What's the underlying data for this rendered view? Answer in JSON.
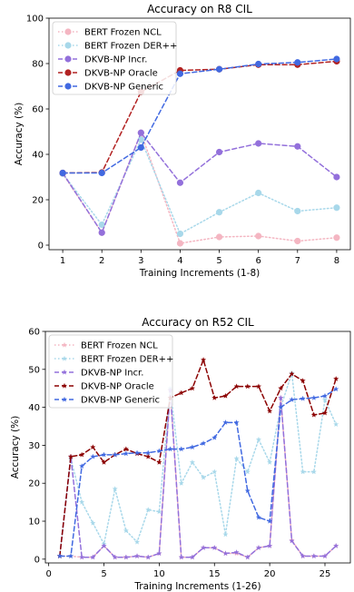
{
  "chart_data": [
    {
      "type": "line",
      "title": "Accuracy on R8 CIL",
      "xlabel": "Training Increments (1-8)",
      "ylabel": "Accuracy (%)",
      "xlim": [
        0.65,
        8.35
      ],
      "ylim": [
        -2,
        100
      ],
      "xticks": [
        1,
        2,
        3,
        4,
        5,
        6,
        7,
        8
      ],
      "yticks": [
        0,
        20,
        40,
        60,
        80,
        100
      ],
      "legend_position": "upper-left",
      "grid": false,
      "x": [
        1,
        2,
        3,
        4,
        5,
        6,
        7,
        8
      ],
      "series": [
        {
          "name": "BERT Frozen NCL",
          "values": [
            31.5,
            5.5,
            49.5,
            0.8,
            3.6,
            4.0,
            1.8,
            3.3
          ],
          "color": "#f4b6c2",
          "style": "dotted",
          "marker": "circle"
        },
        {
          "name": "BERT Frozen DER++",
          "values": [
            31.5,
            9.0,
            46.5,
            5.0,
            14.5,
            23.0,
            15.0,
            16.5
          ],
          "color": "#a8d8ea",
          "style": "dotted",
          "marker": "circle"
        },
        {
          "name": "DKVB-NP Incr.",
          "values": [
            31.8,
            5.5,
            49.5,
            27.5,
            41.0,
            44.8,
            43.5,
            30.0
          ],
          "color": "#9370db",
          "style": "dashed",
          "marker": "circle"
        },
        {
          "name": "DKVB-NP Oracle",
          "values": [
            31.8,
            32.0,
            67.5,
            77.0,
            77.5,
            79.5,
            79.5,
            81.0
          ],
          "color": "#b22222",
          "style": "dashed",
          "marker": "circle"
        },
        {
          "name": "DKVB-NP Generic",
          "values": [
            31.8,
            31.8,
            43.0,
            75.5,
            77.5,
            79.8,
            80.5,
            82.0
          ],
          "color": "#4169e1",
          "style": "dashed",
          "marker": "circle"
        }
      ]
    },
    {
      "type": "line",
      "title": "Accuracy on R52 CIL",
      "xlabel": "Training Increments (1-26)",
      "ylabel": "Accuracy (%)",
      "xlim": [
        -0.3,
        27.3
      ],
      "ylim": [
        -1,
        60
      ],
      "xticks": [
        0,
        5,
        10,
        15,
        20,
        25
      ],
      "yticks": [
        0,
        10,
        20,
        30,
        40,
        50,
        60
      ],
      "legend_position": "upper-left",
      "grid": false,
      "x": [
        1,
        2,
        3,
        4,
        5,
        6,
        7,
        8,
        9,
        10,
        11,
        12,
        13,
        14,
        15,
        16,
        17,
        18,
        19,
        20,
        21,
        22,
        23,
        24,
        25,
        26
      ],
      "series": [
        {
          "name": "BERT Frozen NCL",
          "values": [
            0.8,
            0.8,
            0.5,
            0.5,
            3.5,
            0.5,
            0.5,
            0.8,
            0.5,
            1.5,
            44.5,
            0.5,
            0.5,
            3.0,
            3.0,
            1.5,
            1.5,
            0.5,
            3.0,
            3.5,
            42.5,
            5.0,
            0.8,
            0.8,
            0.8,
            3.5
          ],
          "color": "#f4b6c2",
          "style": "dotted",
          "marker": "star"
        },
        {
          "name": "BERT Frozen DER++",
          "values": [
            0.8,
            26.5,
            15.0,
            9.5,
            4.0,
            18.5,
            7.5,
            4.5,
            13.0,
            12.5,
            45.0,
            20.0,
            25.5,
            21.5,
            23.0,
            6.5,
            26.5,
            23.0,
            31.5,
            25.5,
            40.0,
            49.0,
            23.0,
            23.0,
            42.0,
            35.5
          ],
          "color": "#a8d8ea",
          "style": "dotted",
          "marker": "star"
        },
        {
          "name": "DKVB-NP Incr.",
          "values": [
            0.8,
            27.0,
            0.5,
            0.5,
            3.5,
            0.5,
            0.5,
            0.8,
            0.5,
            1.5,
            44.5,
            0.5,
            0.5,
            3.0,
            3.0,
            1.5,
            1.8,
            0.5,
            3.0,
            3.5,
            42.5,
            4.8,
            0.8,
            0.8,
            0.8,
            3.5
          ],
          "color": "#9370db",
          "style": "dashed",
          "marker": "star"
        },
        {
          "name": "DKVB-NP Oracle",
          "values": [
            0.8,
            27.0,
            27.5,
            29.5,
            25.5,
            27.5,
            29.0,
            27.8,
            27.0,
            25.5,
            42.5,
            43.8,
            45.0,
            52.5,
            42.5,
            43.0,
            45.5,
            45.5,
            45.5,
            39.0,
            45.0,
            48.8,
            47.0,
            38.0,
            38.5,
            47.5
          ],
          "color": "#8b0000",
          "style": "dashed",
          "marker": "star"
        },
        {
          "name": "DKVB-NP Generic",
          "values": [
            0.8,
            0.8,
            24.5,
            27.0,
            27.5,
            27.5,
            27.8,
            28.0,
            28.0,
            28.5,
            29.0,
            29.0,
            29.5,
            30.5,
            32.0,
            36.0,
            36.0,
            18.0,
            11.0,
            10.0,
            40.0,
            42.0,
            42.3,
            42.5,
            43.0,
            44.8
          ],
          "color": "#4169e1",
          "style": "dashed",
          "marker": "star"
        }
      ]
    }
  ]
}
